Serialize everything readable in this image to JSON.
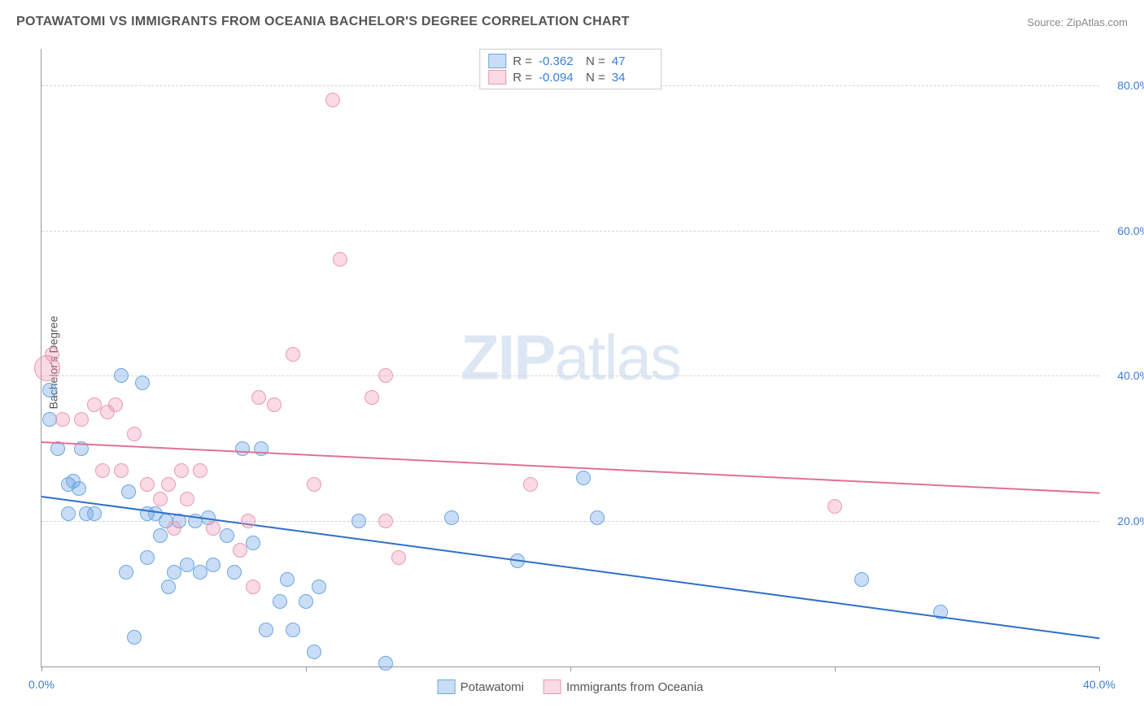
{
  "header": {
    "title": "POTAWATOMI VS IMMIGRANTS FROM OCEANIA BACHELOR'S DEGREE CORRELATION CHART",
    "source_label": "Source:",
    "source_name": "ZipAtlas.com"
  },
  "watermark_a": "ZIP",
  "watermark_b": "atlas",
  "chart": {
    "type": "scatter",
    "ylabel": "Bachelor's Degree",
    "xlim": [
      0,
      40
    ],
    "ylim": [
      0,
      85
    ],
    "xticks": [
      {
        "v": 0,
        "label": "0.0%"
      },
      {
        "v": 10,
        "label": ""
      },
      {
        "v": 20,
        "label": ""
      },
      {
        "v": 30,
        "label": ""
      },
      {
        "v": 40,
        "label": "40.0%"
      }
    ],
    "yticks": [
      {
        "v": 20,
        "label": "20.0%"
      },
      {
        "v": 40,
        "label": "40.0%"
      },
      {
        "v": 60,
        "label": "60.0%"
      },
      {
        "v": 80,
        "label": "80.0%"
      }
    ],
    "grid_color": "#d5d5d5",
    "background_color": "#ffffff",
    "series": [
      {
        "name": "Potawatomi",
        "fill": "rgba(100,160,230,0.35)",
        "stroke": "#6da6e0",
        "trend_color": "#2f6fc7",
        "trend": {
          "x0": 0,
          "y0": 23.5,
          "x1": 40,
          "y1": 4
        },
        "R": "-0.362",
        "N": "47",
        "points": [
          {
            "x": 0.3,
            "y": 38,
            "r": 8
          },
          {
            "x": 0.3,
            "y": 34,
            "r": 8
          },
          {
            "x": 0.6,
            "y": 30,
            "r": 8
          },
          {
            "x": 1.0,
            "y": 25,
            "r": 8
          },
          {
            "x": 1.0,
            "y": 21,
            "r": 8
          },
          {
            "x": 1.2,
            "y": 25.5,
            "r": 8
          },
          {
            "x": 1.4,
            "y": 24.5,
            "r": 8
          },
          {
            "x": 1.5,
            "y": 30,
            "r": 8
          },
          {
            "x": 1.7,
            "y": 21,
            "r": 8
          },
          {
            "x": 2.0,
            "y": 21,
            "r": 8
          },
          {
            "x": 3.0,
            "y": 40,
            "r": 8
          },
          {
            "x": 3.2,
            "y": 13,
            "r": 8
          },
          {
            "x": 3.3,
            "y": 24,
            "r": 8
          },
          {
            "x": 3.5,
            "y": 4,
            "r": 8
          },
          {
            "x": 3.8,
            "y": 39,
            "r": 8
          },
          {
            "x": 4.0,
            "y": 21,
            "r": 8
          },
          {
            "x": 4.0,
            "y": 15,
            "r": 8
          },
          {
            "x": 4.3,
            "y": 21,
            "r": 8
          },
          {
            "x": 4.5,
            "y": 18,
            "r": 8
          },
          {
            "x": 4.7,
            "y": 20,
            "r": 8
          },
          {
            "x": 4.8,
            "y": 11,
            "r": 8
          },
          {
            "x": 5.0,
            "y": 13,
            "r": 8
          },
          {
            "x": 5.2,
            "y": 20,
            "r": 8
          },
          {
            "x": 5.5,
            "y": 14,
            "r": 8
          },
          {
            "x": 5.8,
            "y": 20,
            "r": 8
          },
          {
            "x": 6.0,
            "y": 13,
            "r": 8
          },
          {
            "x": 6.3,
            "y": 20.5,
            "r": 8
          },
          {
            "x": 6.5,
            "y": 14,
            "r": 8
          },
          {
            "x": 7.0,
            "y": 18,
            "r": 8
          },
          {
            "x": 7.3,
            "y": 13,
            "r": 8
          },
          {
            "x": 7.6,
            "y": 30,
            "r": 8
          },
          {
            "x": 8.0,
            "y": 17,
            "r": 8
          },
          {
            "x": 8.3,
            "y": 30,
            "r": 8
          },
          {
            "x": 8.5,
            "y": 5,
            "r": 8
          },
          {
            "x": 9.0,
            "y": 9,
            "r": 8
          },
          {
            "x": 9.3,
            "y": 12,
            "r": 8
          },
          {
            "x": 9.5,
            "y": 5,
            "r": 8
          },
          {
            "x": 10.0,
            "y": 9,
            "r": 8
          },
          {
            "x": 10.3,
            "y": 2,
            "r": 8
          },
          {
            "x": 10.5,
            "y": 11,
            "r": 8
          },
          {
            "x": 12.0,
            "y": 20,
            "r": 8
          },
          {
            "x": 13.0,
            "y": 0.5,
            "r": 8
          },
          {
            "x": 15.5,
            "y": 20.5,
            "r": 8
          },
          {
            "x": 18.0,
            "y": 14.5,
            "r": 8
          },
          {
            "x": 20.5,
            "y": 26,
            "r": 8
          },
          {
            "x": 21.0,
            "y": 20.5,
            "r": 8
          },
          {
            "x": 31.0,
            "y": 12,
            "r": 8
          },
          {
            "x": 34.0,
            "y": 7.5,
            "r": 8
          }
        ]
      },
      {
        "name": "Immigrants from Oceania",
        "fill": "rgba(240,140,170,0.32)",
        "stroke": "#e89bb5",
        "trend_color": "#e17096",
        "trend": {
          "x0": 0,
          "y0": 31,
          "x1": 40,
          "y1": 24
        },
        "R": "-0.094",
        "N": "34",
        "points": [
          {
            "x": 0.2,
            "y": 41,
            "r": 15
          },
          {
            "x": 0.4,
            "y": 43,
            "r": 8
          },
          {
            "x": 0.8,
            "y": 34,
            "r": 8
          },
          {
            "x": 1.5,
            "y": 34,
            "r": 8
          },
          {
            "x": 2.0,
            "y": 36,
            "r": 8
          },
          {
            "x": 2.3,
            "y": 27,
            "r": 8
          },
          {
            "x": 2.5,
            "y": 35,
            "r": 8
          },
          {
            "x": 2.8,
            "y": 36,
            "r": 8
          },
          {
            "x": 3.0,
            "y": 27,
            "r": 8
          },
          {
            "x": 3.5,
            "y": 32,
            "r": 8
          },
          {
            "x": 4.0,
            "y": 25,
            "r": 8
          },
          {
            "x": 4.5,
            "y": 23,
            "r": 8
          },
          {
            "x": 4.8,
            "y": 25,
            "r": 8
          },
          {
            "x": 5.0,
            "y": 19,
            "r": 8
          },
          {
            "x": 5.3,
            "y": 27,
            "r": 8
          },
          {
            "x": 5.5,
            "y": 23,
            "r": 8
          },
          {
            "x": 6.0,
            "y": 27,
            "r": 8
          },
          {
            "x": 6.5,
            "y": 19,
            "r": 8
          },
          {
            "x": 7.5,
            "y": 16,
            "r": 8
          },
          {
            "x": 7.8,
            "y": 20,
            "r": 8
          },
          {
            "x": 8.0,
            "y": 11,
            "r": 8
          },
          {
            "x": 8.2,
            "y": 37,
            "r": 8
          },
          {
            "x": 8.8,
            "y": 36,
            "r": 8
          },
          {
            "x": 9.5,
            "y": 43,
            "r": 8
          },
          {
            "x": 10.3,
            "y": 25,
            "r": 8
          },
          {
            "x": 11.0,
            "y": 78,
            "r": 8
          },
          {
            "x": 11.3,
            "y": 56,
            "r": 8
          },
          {
            "x": 12.5,
            "y": 37,
            "r": 8
          },
          {
            "x": 13.0,
            "y": 40,
            "r": 8
          },
          {
            "x": 13.0,
            "y": 20,
            "r": 8
          },
          {
            "x": 13.5,
            "y": 15,
            "r": 8
          },
          {
            "x": 18.5,
            "y": 25,
            "r": 8
          },
          {
            "x": 30.0,
            "y": 22,
            "r": 8
          }
        ]
      }
    ],
    "stats_legend": {
      "R_label": "R =",
      "N_label": "N ="
    }
  }
}
